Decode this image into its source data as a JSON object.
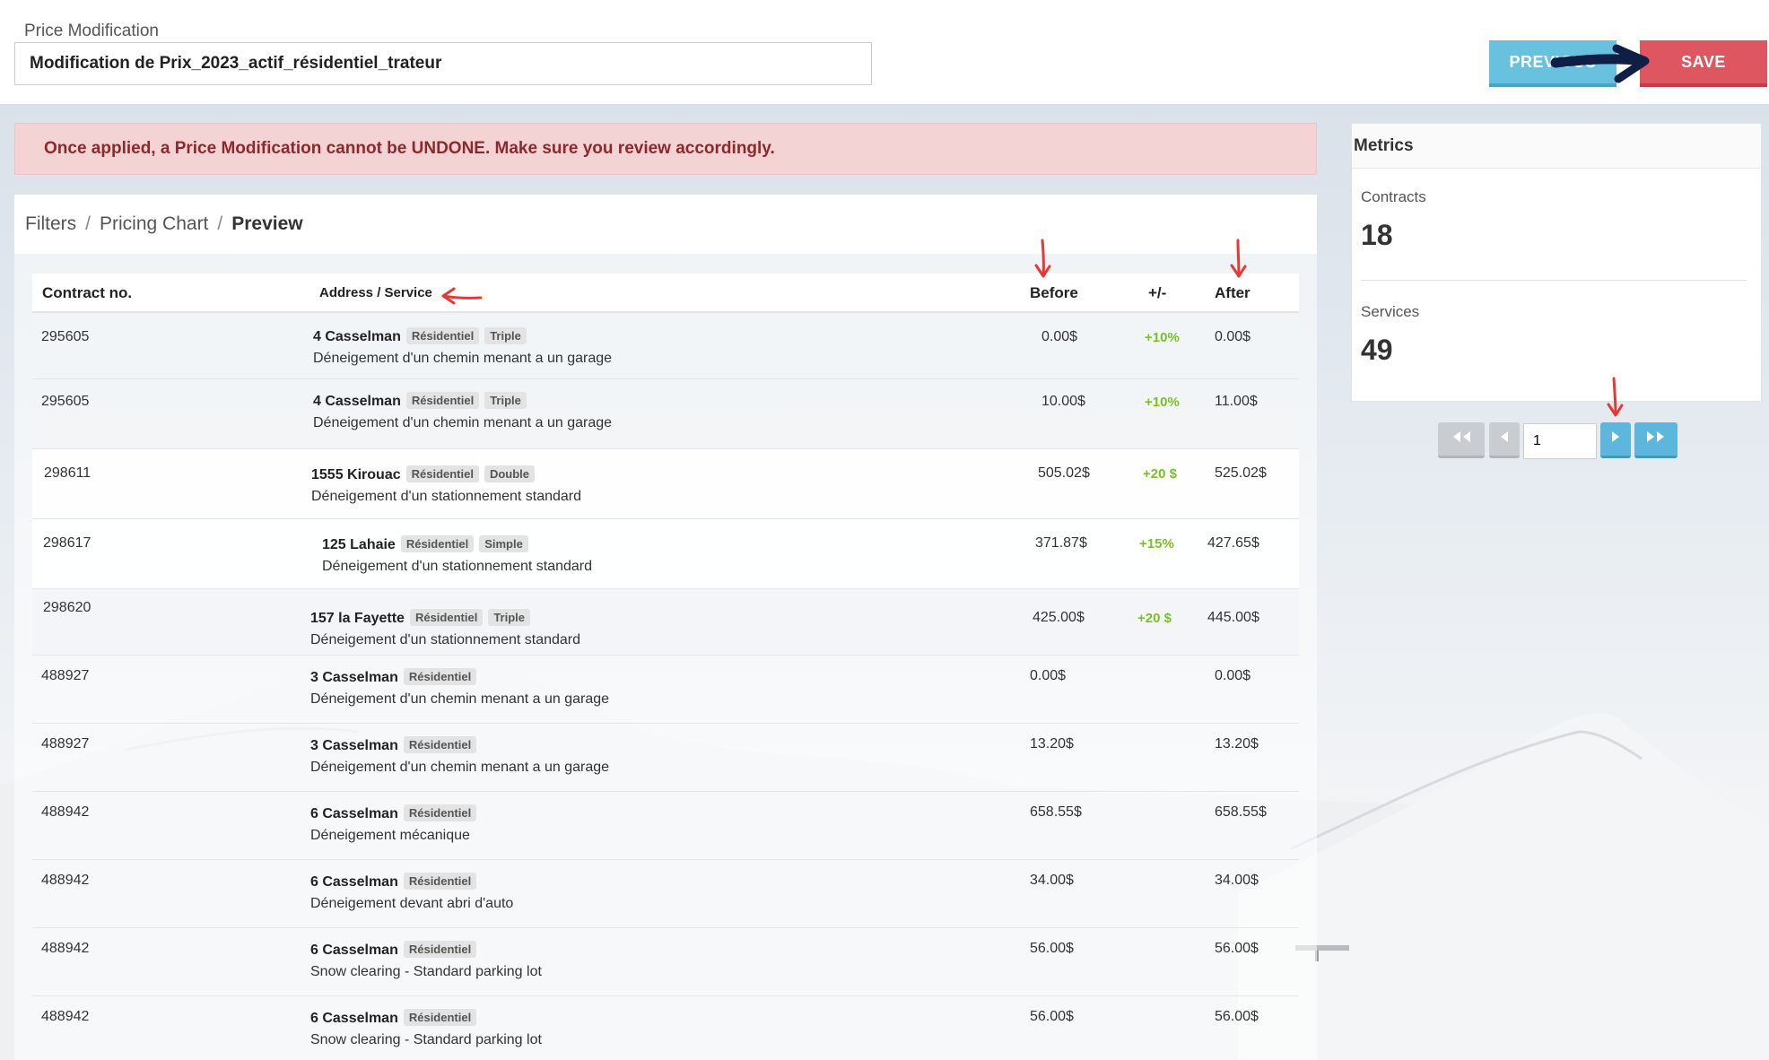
{
  "header": {
    "label": "Price Modification",
    "input_value": "Modification de Prix_2023_actif_résidentiel_trateur",
    "previous_label": "PREVIOUS",
    "save_label": "SAVE"
  },
  "alert": {
    "text": "Once applied, a Price Modification cannot be UNDONE. Make sure you review accordingly."
  },
  "breadcrumb": {
    "items": [
      "Filters",
      "Pricing Chart",
      "Preview"
    ],
    "separator": "/"
  },
  "table": {
    "headers": {
      "contract": "Contract no.",
      "address": "Address / Service",
      "before": "Before",
      "delta": "+/-",
      "after": "After"
    },
    "rows": [
      {
        "contract": "295605",
        "address": "4 Casselman",
        "tags": [
          "Résidentiel",
          "Triple"
        ],
        "service": "Déneigement d'un chemin menant a un garage",
        "before": "0.00$",
        "delta": "+10%",
        "after": "0.00$"
      },
      {
        "contract": "295605",
        "address": "4 Casselman",
        "tags": [
          "Résidentiel",
          "Triple"
        ],
        "service": "Déneigement d'un chemin menant a un garage",
        "before": "10.00$",
        "delta": "+10%",
        "after": "11.00$"
      },
      {
        "contract": "298611",
        "address": "1555 Kirouac",
        "tags": [
          "Résidentiel",
          "Double"
        ],
        "service": "Déneigement d'un stationnement standard",
        "before": "505.02$",
        "delta": "+20 $",
        "after": "525.02$"
      },
      {
        "contract": "298617",
        "address": "125 Lahaie",
        "tags": [
          "Résidentiel",
          "Simple"
        ],
        "service": "Déneigement d'un stationnement standard",
        "before": "371.87$",
        "delta": "+15%",
        "after": "427.65$"
      },
      {
        "contract": "298620",
        "address": "157 la Fayette",
        "tags": [
          "Résidentiel",
          "Triple"
        ],
        "service": "Déneigement d'un stationnement standard",
        "before": "425.00$",
        "delta": "+20 $",
        "after": "445.00$"
      },
      {
        "contract": "488927",
        "address": "3 Casselman",
        "tags": [
          "Résidentiel"
        ],
        "service": "Déneigement d'un chemin menant a un garage",
        "before": "0.00$",
        "delta": "",
        "after": "0.00$"
      },
      {
        "contract": "488927",
        "address": "3 Casselman",
        "tags": [
          "Résidentiel"
        ],
        "service": "Déneigement d'un chemin menant a un garage",
        "before": "13.20$",
        "delta": "",
        "after": "13.20$"
      },
      {
        "contract": "488942",
        "address": "6 Casselman",
        "tags": [
          "Résidentiel"
        ],
        "service": "Déneigement mécanique",
        "before": "658.55$",
        "delta": "",
        "after": "658.55$"
      },
      {
        "contract": "488942",
        "address": "6 Casselman",
        "tags": [
          "Résidentiel"
        ],
        "service": "Déneigement devant abri d'auto",
        "before": "34.00$",
        "delta": "",
        "after": "34.00$"
      },
      {
        "contract": "488942",
        "address": "6 Casselman",
        "tags": [
          "Résidentiel"
        ],
        "service": "Snow clearing - Standard parking lot",
        "before": "56.00$",
        "delta": "",
        "after": "56.00$"
      },
      {
        "contract": "488942",
        "address": "6 Casselman",
        "tags": [
          "Résidentiel"
        ],
        "service": "Snow clearing - Standard parking lot",
        "before": "56.00$",
        "delta": "",
        "after": "56.00$"
      }
    ]
  },
  "metrics": {
    "title": "Metrics",
    "contracts_label": "Contracts",
    "contracts_value": "18",
    "services_label": "Services",
    "services_value": "49"
  },
  "pagination": {
    "page_value": "1"
  },
  "colors": {
    "previous": "#69c1e0",
    "save": "#de5660",
    "alert_bg": "#f4d3d5",
    "alert_text": "#8b2a2e",
    "delta_positive": "#7bbf2a",
    "annotation_red": "#e53935",
    "annotation_navy": "#0f1e44"
  }
}
